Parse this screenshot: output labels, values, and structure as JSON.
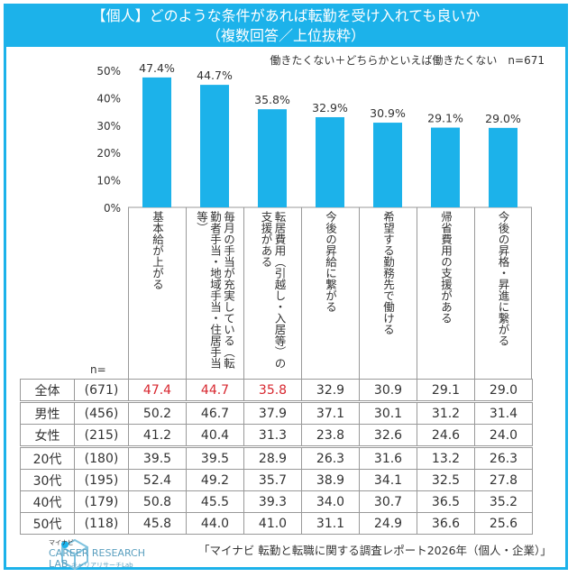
{
  "title": {
    "line1": "【個人】どのような条件があれば転勤を受け入れても良いか",
    "line2": "（複数回答／上位抜粋）"
  },
  "note": "働きたくない＋どちらかといえば働きたくない　n=671",
  "colors": {
    "bar": "#1cb2ea",
    "frame": "#1cb2ea",
    "highlight": "#d7262e"
  },
  "chart_data": {
    "type": "bar",
    "categories": [
      "基本給が上がる",
      "毎月の手当が充実している（転勤者手当・地域手当・住居手当等）",
      "転居費用（引越し・入居等）の支援がある",
      "今後の昇給に繋がる",
      "希望する勤務先で働ける",
      "帰省費用の支援がある",
      "今後の昇格・昇進に繋がる"
    ],
    "values": [
      47.4,
      44.7,
      35.8,
      32.9,
      30.9,
      29.1,
      29.0
    ],
    "data_labels": [
      "47.4%",
      "44.7%",
      "35.8%",
      "32.9%",
      "30.9%",
      "29.1%",
      "29.0%"
    ],
    "yticks": [
      "0%",
      "10%",
      "20%",
      "30%",
      "40%",
      "50%"
    ],
    "ylim": [
      0,
      50
    ],
    "grid": false
  },
  "categories_display": [
    "基本給が上がる",
    "毎月の手当が充実している（転勤者手当・地域手当・住居手当等）",
    "転居費用（引越し・入居等）の支援がある",
    "今後の昇給に繋がる",
    "希望する勤務先で働ける",
    "帰省費用の支援がある",
    "今後の昇格・昇進に繋がる"
  ],
  "table": {
    "n_header": "n=",
    "rows": [
      {
        "label": "全体",
        "n": "(671)",
        "values": [
          "47.4",
          "44.7",
          "35.8",
          "32.9",
          "30.9",
          "29.1",
          "29.0"
        ],
        "highlight": 3
      },
      {
        "label": "男性",
        "n": "(456)",
        "values": [
          "50.2",
          "46.7",
          "37.9",
          "37.1",
          "30.1",
          "31.2",
          "31.4"
        ]
      },
      {
        "label": "女性",
        "n": "(215)",
        "values": [
          "41.2",
          "40.4",
          "31.3",
          "23.8",
          "32.6",
          "24.6",
          "24.0"
        ]
      },
      {
        "label": "20代",
        "n": "(180)",
        "values": [
          "39.5",
          "39.5",
          "28.9",
          "26.3",
          "31.6",
          "13.2",
          "26.3"
        ]
      },
      {
        "label": "30代",
        "n": "(195)",
        "values": [
          "52.4",
          "49.2",
          "35.7",
          "38.9",
          "34.1",
          "32.5",
          "27.8"
        ]
      },
      {
        "label": "40代",
        "n": "(179)",
        "values": [
          "50.8",
          "45.5",
          "39.3",
          "34.0",
          "30.7",
          "36.5",
          "35.2"
        ]
      },
      {
        "label": "50代",
        "n": "(118)",
        "values": [
          "45.8",
          "44.0",
          "41.0",
          "31.1",
          "24.9",
          "36.6",
          "25.6"
        ]
      }
    ]
  },
  "footer": {
    "logo_top": "マイナビ",
    "logo_main": "CAREER RESEARCH",
    "logo_sub": "LAB",
    "logo_kana": "キャリアリサーチLab",
    "source": "「マイナビ 転勤と転職に関する調査レポート2026年（個人・企業）」"
  }
}
